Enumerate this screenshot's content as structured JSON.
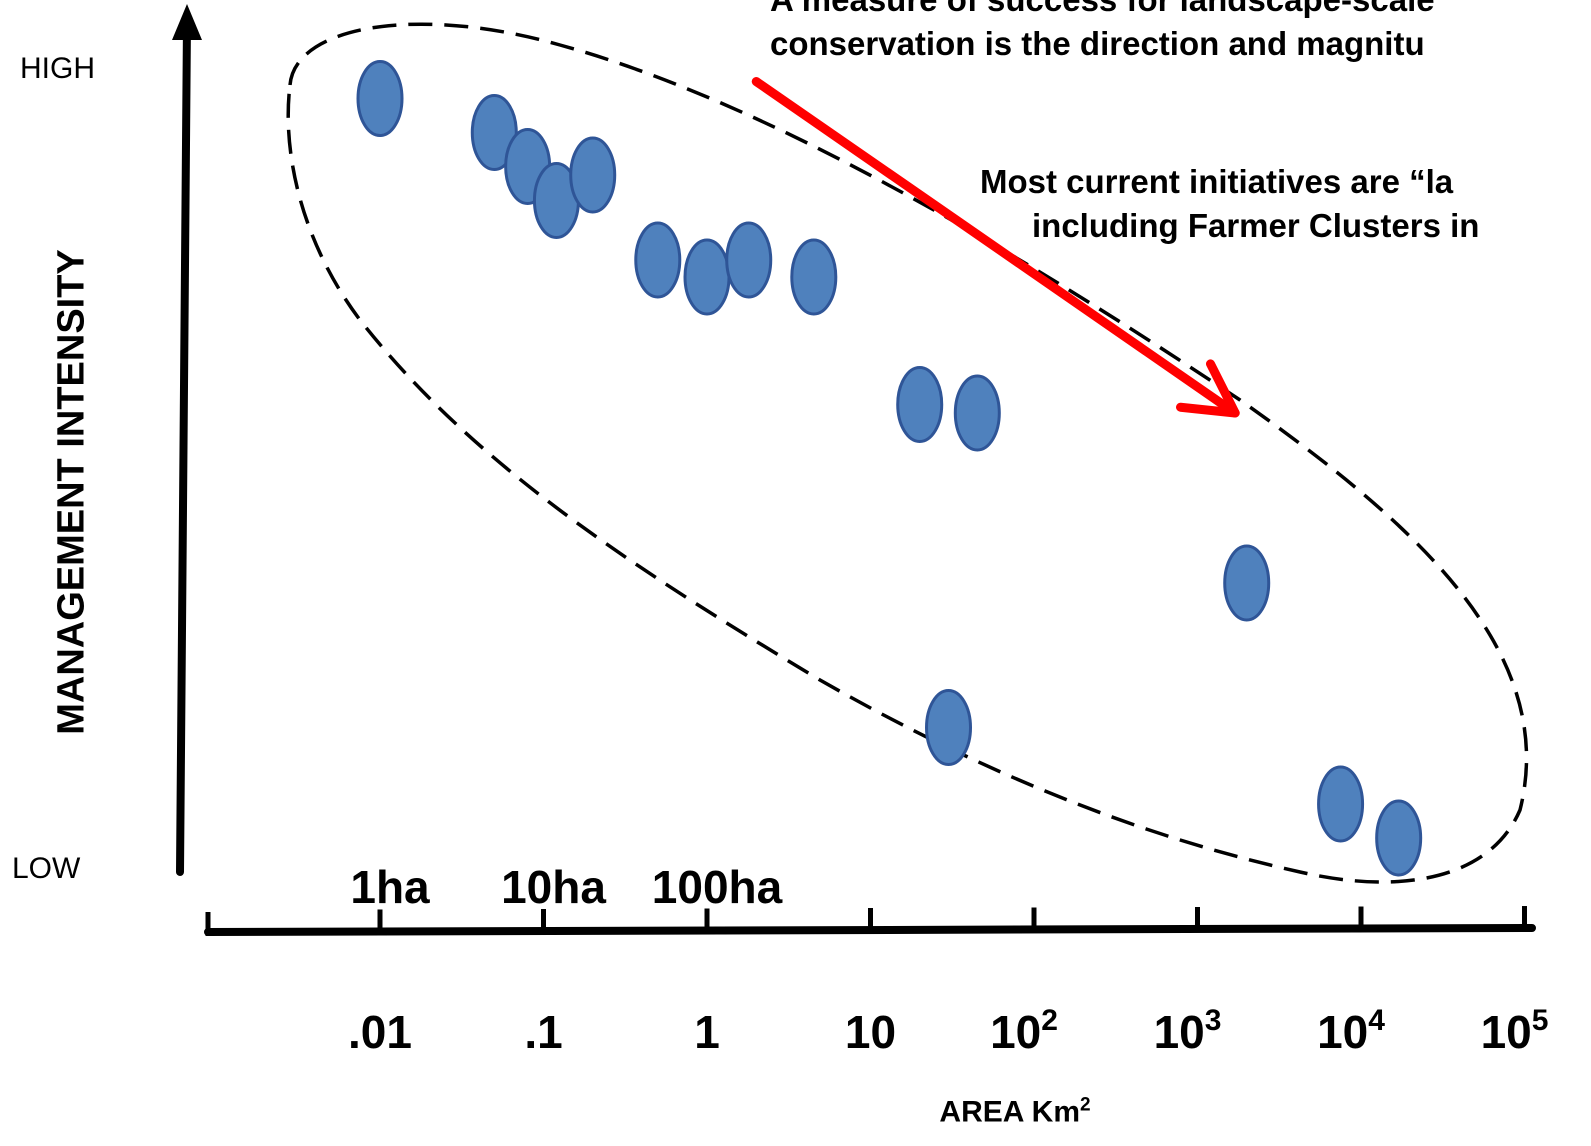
{
  "chart_data": {
    "type": "scatter",
    "title": "",
    "xlabel": "AREA Km",
    "xlabel_sup": "2",
    "ylabel": "MANAGEMENT INTENSITY",
    "x_scale": "log",
    "xlim": [
      0.001,
      100000
    ],
    "y_levels": {
      "high": "HIGH",
      "low": "LOW"
    },
    "x_ticks": [
      {
        "value": 0.01,
        "base": ".01",
        "sup": ""
      },
      {
        "value": 0.1,
        "base": ".1",
        "sup": ""
      },
      {
        "value": 1,
        "base": "1",
        "sup": ""
      },
      {
        "value": 10,
        "base": "10",
        "sup": ""
      },
      {
        "value": 100,
        "base": "10",
        "sup": "2"
      },
      {
        "value": 1000,
        "base": "10",
        "sup": "3"
      },
      {
        "value": 10000,
        "base": "10",
        "sup": "4"
      },
      {
        "value": 100000,
        "base": "10",
        "sup": "5"
      }
    ],
    "ha_labels": [
      {
        "label": "1ha",
        "value": 0.01
      },
      {
        "label": "10ha",
        "value": 0.1
      },
      {
        "label": "100ha",
        "value": 1
      }
    ],
    "points": [
      {
        "x": 0.01,
        "y": 0.91
      },
      {
        "x": 0.05,
        "y": 0.87
      },
      {
        "x": 0.08,
        "y": 0.83
      },
      {
        "x": 0.12,
        "y": 0.79
      },
      {
        "x": 0.2,
        "y": 0.82
      },
      {
        "x": 0.5,
        "y": 0.72
      },
      {
        "x": 1.0,
        "y": 0.7
      },
      {
        "x": 1.8,
        "y": 0.72
      },
      {
        "x": 4.5,
        "y": 0.7
      },
      {
        "x": 20,
        "y": 0.55
      },
      {
        "x": 45,
        "y": 0.54
      },
      {
        "x": 30,
        "y": 0.17
      },
      {
        "x": 2000,
        "y": 0.34
      },
      {
        "x": 7500,
        "y": 0.08
      },
      {
        "x": 17000,
        "y": 0.04
      }
    ],
    "trend_arrow": {
      "from": {
        "x": 2,
        "y": 0.93
      },
      "to": {
        "x": 1700,
        "y": 0.54
      }
    },
    "annotations": [
      "A measure of success for landscape-scale conservation is the direction and magnitude",
      "Most current initiatives are “la including Farmer Clusters in"
    ],
    "colors": {
      "point_fill": "#4f81bd",
      "point_stroke": "#2f5597",
      "arrow": "#ff0000",
      "axis": "#000000",
      "envelope": "#000000"
    },
    "grid": false,
    "legend": "none"
  },
  "annotations": {
    "line1": "A measure of success for landscape-scale",
    "line2": "conservation is the direction and magnitu",
    "line3": "Most current initiatives are “la",
    "line4": "including Farmer Clusters in"
  }
}
